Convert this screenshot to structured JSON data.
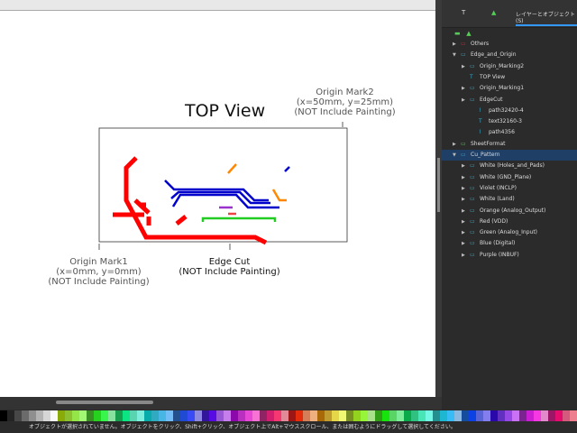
{
  "canvas": {
    "title": "TOP View",
    "mark2": [
      "Origin Mark2",
      "(x=50mm, y=25mm)",
      "(NOT Include Painting)"
    ],
    "mark1": [
      "Origin Mark1",
      "(x=0mm, y=0mm)",
      "(NOT Include Painting)"
    ],
    "edge": [
      "Edge Cut",
      "(NOT Include Painting)"
    ]
  },
  "panel": {
    "tab": "レイヤーとオブジェクト(S)",
    "tab_t": "T",
    "items": [
      {
        "label": "Others",
        "depth": 0,
        "kind": "layer",
        "color": "#e0203a"
      },
      {
        "label": "Edge_and_Origin",
        "depth": 0,
        "kind": "layer",
        "color": "#3ac"
      },
      {
        "label": "Origin_Marking2",
        "depth": 1,
        "kind": "group",
        "color": "#3ac"
      },
      {
        "label": "TOP View",
        "depth": 1,
        "kind": "text",
        "color": "#3ac"
      },
      {
        "label": "Origin_Marking1",
        "depth": 1,
        "kind": "group",
        "color": "#3ac"
      },
      {
        "label": "EdgeCut",
        "depth": 1,
        "kind": "group",
        "color": "#3ac"
      },
      {
        "label": "path32420-4",
        "depth": 2,
        "kind": "path",
        "color": "#3ac"
      },
      {
        "label": "text32160-3",
        "depth": 2,
        "kind": "text",
        "color": "#3ac"
      },
      {
        "label": "path4356",
        "depth": 2,
        "kind": "path",
        "color": "#3ac"
      },
      {
        "label": "SheetFormat",
        "depth": 0,
        "kind": "layer",
        "color": "#5c5"
      },
      {
        "label": "Cu_Pattern",
        "depth": 0,
        "kind": "layer",
        "color": "#3ac"
      },
      {
        "label": "White (Holes_and_Pads)",
        "depth": 1,
        "kind": "group",
        "color": "#3ac"
      },
      {
        "label": "White (GND_Plane)",
        "depth": 1,
        "kind": "group",
        "color": "#3ac"
      },
      {
        "label": "Violet (INCLP)",
        "depth": 1,
        "kind": "group",
        "color": "#3ac"
      },
      {
        "label": "White (Land)",
        "depth": 1,
        "kind": "group",
        "color": "#3ac"
      },
      {
        "label": "Orange (Analog_Output)",
        "depth": 1,
        "kind": "group",
        "color": "#3ac"
      },
      {
        "label": "Red (VDD)",
        "depth": 1,
        "kind": "group",
        "color": "#3ac"
      },
      {
        "label": "Green (Analog_Input)",
        "depth": 1,
        "kind": "group",
        "color": "#3ac"
      },
      {
        "label": "Blue (Digital)",
        "depth": 1,
        "kind": "group",
        "color": "#3ac"
      },
      {
        "label": "Purple (INBUF)",
        "depth": 1,
        "kind": "group",
        "color": "#3ac"
      }
    ]
  },
  "status": "オブジェクトが選択されていません。オブジェクトをクリック、Shift+クリック、オブジェクト上でAlt+マウススクロール、または囲むようにドラッグして選択してください。"
}
